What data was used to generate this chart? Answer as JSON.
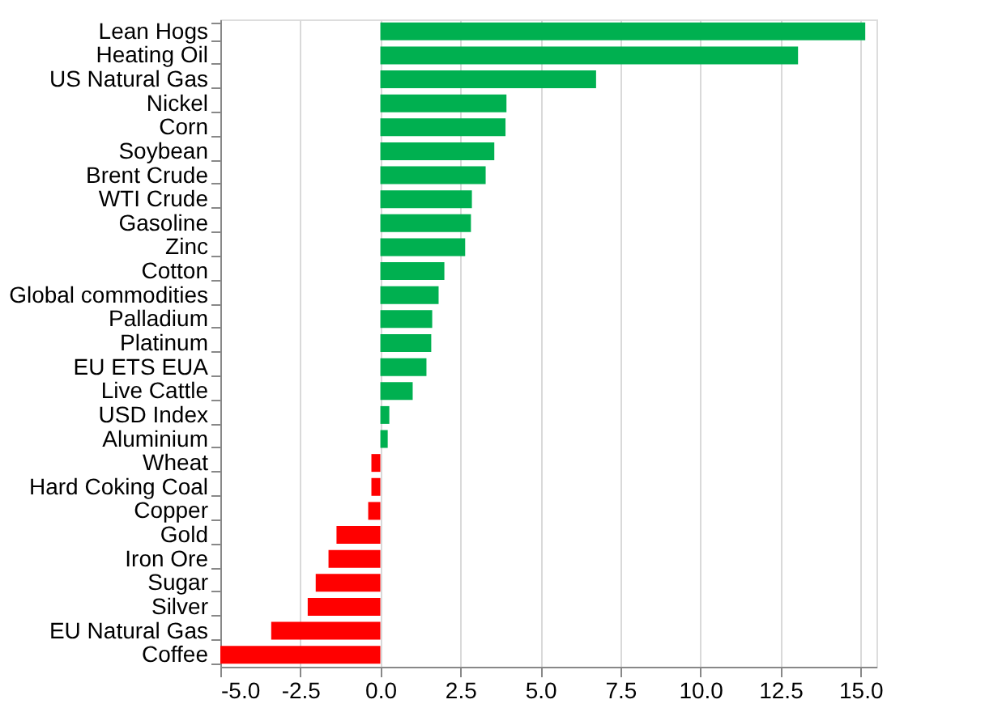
{
  "chart_data": {
    "type": "bar",
    "orientation": "horizontal",
    "categories": [
      "Lean Hogs",
      "Heating Oil",
      "US Natural Gas",
      "Nickel",
      "Corn",
      "Soybean",
      "Brent Crude",
      "WTI Crude",
      "Gasoline",
      "Zinc",
      "Cotton",
      "Global commodities",
      "Palladium",
      "Platinum",
      "EU ETS EUA",
      "Live Cattle",
      "USD Index",
      "Aluminium",
      "Wheat",
      "Hard Coking Coal",
      "Copper",
      "Gold",
      "Iron Ore",
      "Sugar",
      "Silver",
      "EU Natural Gas",
      "Coffee"
    ],
    "values": [
      15.15,
      13.05,
      6.74,
      3.94,
      3.91,
      3.56,
      3.29,
      2.86,
      2.83,
      2.65,
      2.0,
      1.82,
      1.62,
      1.59,
      1.44,
      1.01,
      0.28,
      0.23,
      -0.28,
      -0.28,
      -0.38,
      -1.37,
      -1.62,
      -2.02,
      -2.27,
      -3.41,
      -5.0
    ],
    "colors": [
      "#00b050",
      "#00b050",
      "#00b050",
      "#00b050",
      "#00b050",
      "#00b050",
      "#00b050",
      "#00b050",
      "#00b050",
      "#00b050",
      "#00b050",
      "#00b050",
      "#00b050",
      "#00b050",
      "#00b050",
      "#00b050",
      "#00b050",
      "#00b050",
      "#ff0000",
      "#ff0000",
      "#ff0000",
      "#ff0000",
      "#ff0000",
      "#ff0000",
      "#ff0000",
      "#ff0000",
      "#ff0000"
    ],
    "xlim": [
      -5,
      15.5
    ],
    "xticks": [
      {
        "value": -5,
        "label": "-5.0"
      },
      {
        "value": -2.5,
        "label": "-2.5"
      },
      {
        "value": 0,
        "label": "0.0"
      },
      {
        "value": 2.5,
        "label": "2.5"
      },
      {
        "value": 5,
        "label": "5.0"
      },
      {
        "value": 7.5,
        "label": "7.5"
      },
      {
        "value": 10,
        "label": "10.0"
      },
      {
        "value": 12.5,
        "label": "12.5"
      },
      {
        "value": 15,
        "label": "15.0"
      }
    ],
    "grid": "x"
  }
}
